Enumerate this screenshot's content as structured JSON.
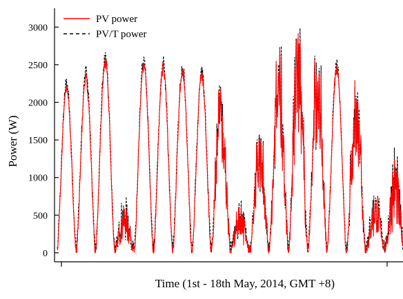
{
  "chart_data": {
    "type": "line",
    "title": "",
    "xlabel": "Time (1st - 18th May, 2014, GMT +8)",
    "ylabel": "Power (W)",
    "ylim": [
      -120,
      3250
    ],
    "xlim": [
      0.0,
      21.4
    ],
    "yticks": [
      0,
      500,
      1000,
      1500,
      2000,
      2500,
      3000
    ],
    "yticklabels": [
      "0",
      "500",
      "1000",
      "1500",
      "2000",
      "2500",
      "3000"
    ],
    "xticks": [
      0,
      20
    ],
    "grid": false,
    "legend": {
      "position": "top-left"
    },
    "colors": {
      "pv": "#ff0000",
      "pvt": "#000000"
    },
    "days": [
      {
        "day": 1,
        "peak": 2230,
        "type": "smooth"
      },
      {
        "day": 2,
        "peak": 2380,
        "type": "smooth"
      },
      {
        "day": 3,
        "peak": 2600,
        "type": "smooth"
      },
      {
        "day": 4,
        "peak": 650,
        "type": "cloudy"
      },
      {
        "day": 5,
        "peak": 2550,
        "type": "smooth"
      },
      {
        "day": 6,
        "peak": 2520,
        "type": "smooth"
      },
      {
        "day": 7,
        "peak": 2480,
        "type": "smooth"
      },
      {
        "day": 8,
        "peak": 2420,
        "type": "smooth"
      },
      {
        "day": 9,
        "peak": 2150,
        "type": "variable"
      },
      {
        "day": 10,
        "peak": 650,
        "type": "cloudy"
      },
      {
        "day": 11,
        "peak": 1500,
        "type": "variable"
      },
      {
        "day": 12,
        "peak": 2700,
        "type": "variable"
      },
      {
        "day": 13,
        "peak": 2880,
        "type": "variable"
      },
      {
        "day": 14,
        "peak": 2600,
        "type": "variable"
      },
      {
        "day": 15,
        "peak": 2500,
        "type": "smooth"
      },
      {
        "day": 16,
        "peak": 2230,
        "type": "variable"
      },
      {
        "day": 17,
        "peak": 800,
        "type": "cloudy"
      },
      {
        "day": 18,
        "peak": 1350,
        "type": "cloudy"
      }
    ],
    "series": [
      {
        "name": "PV power",
        "key": "pv",
        "style": "solid"
      },
      {
        "name": "PV/T power",
        "key": "pvt",
        "style": "dashed"
      }
    ]
  }
}
